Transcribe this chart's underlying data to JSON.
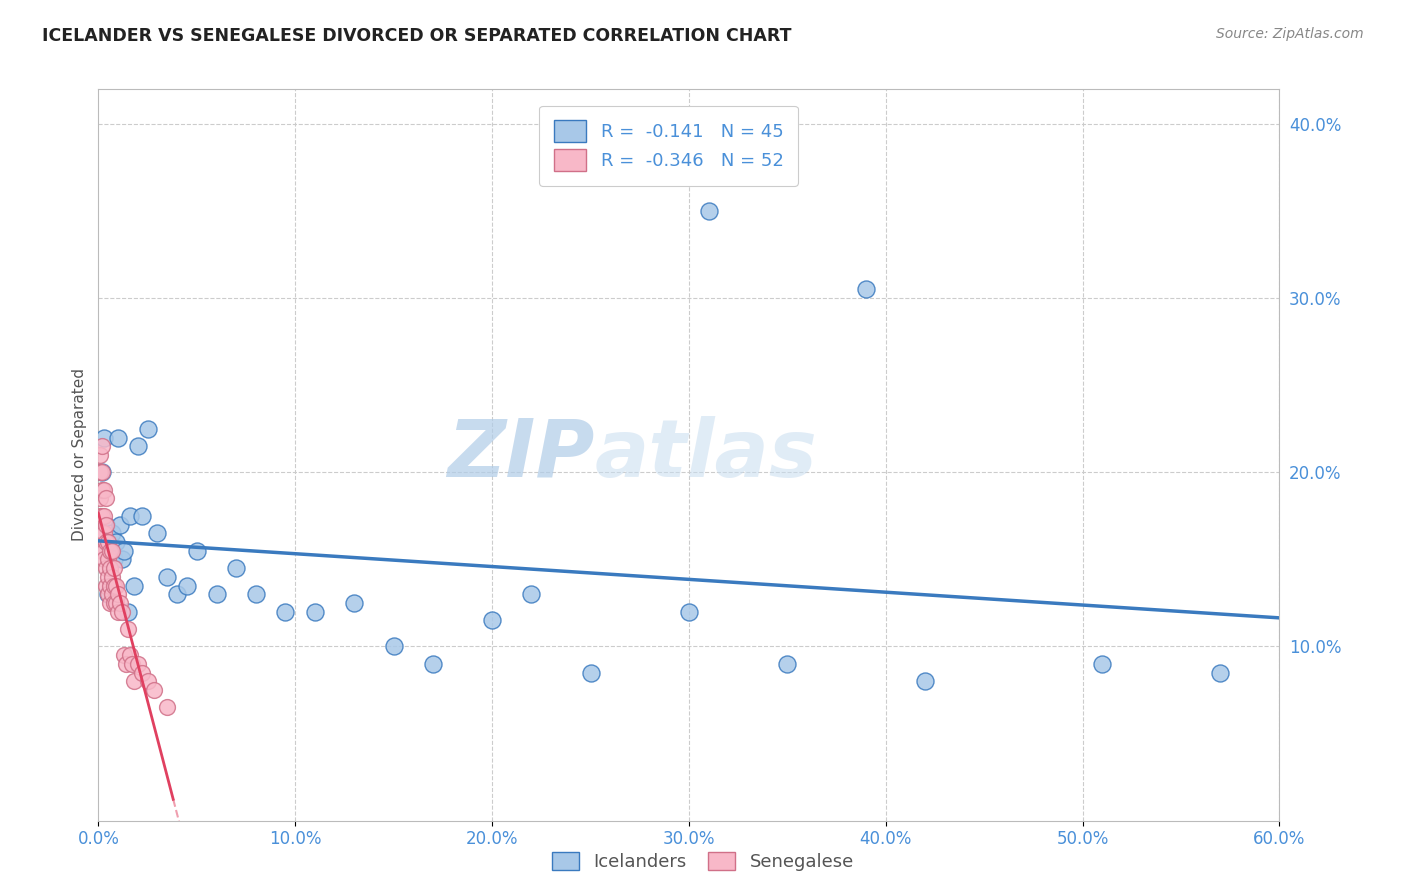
{
  "title": "ICELANDER VS SENEGALESE DIVORCED OR SEPARATED CORRELATION CHART",
  "source": "Source: ZipAtlas.com",
  "ylabel_label": "Divorced or Separated",
  "legend_label1": "Icelanders",
  "legend_label2": "Senegalese",
  "R1": -0.141,
  "N1": 45,
  "R2": -0.346,
  "N2": 52,
  "color1": "#a8c8e8",
  "color2": "#f8b8c8",
  "line_color1": "#3a7abf",
  "line_color2": "#e04060",
  "watermark_zip": "ZIP",
  "watermark_atlas": "atlas",
  "xlim": [
    0.0,
    0.6
  ],
  "ylim": [
    0.0,
    0.42
  ],
  "xticks": [
    0.0,
    0.1,
    0.2,
    0.3,
    0.4,
    0.5,
    0.6
  ],
  "yticks": [
    0.1,
    0.2,
    0.3,
    0.4
  ],
  "icelander_x": [
    0.001,
    0.002,
    0.002,
    0.003,
    0.003,
    0.004,
    0.004,
    0.005,
    0.006,
    0.007,
    0.008,
    0.009,
    0.01,
    0.011,
    0.012,
    0.013,
    0.015,
    0.016,
    0.018,
    0.02,
    0.022,
    0.025,
    0.03,
    0.035,
    0.04,
    0.045,
    0.05,
    0.06,
    0.07,
    0.08,
    0.095,
    0.11,
    0.13,
    0.15,
    0.17,
    0.2,
    0.22,
    0.25,
    0.3,
    0.31,
    0.35,
    0.39,
    0.42,
    0.51,
    0.57
  ],
  "icelander_y": [
    0.17,
    0.16,
    0.2,
    0.22,
    0.165,
    0.155,
    0.17,
    0.13,
    0.155,
    0.165,
    0.15,
    0.16,
    0.22,
    0.17,
    0.15,
    0.155,
    0.12,
    0.175,
    0.135,
    0.215,
    0.175,
    0.225,
    0.165,
    0.14,
    0.13,
    0.135,
    0.155,
    0.13,
    0.145,
    0.13,
    0.12,
    0.12,
    0.125,
    0.1,
    0.09,
    0.115,
    0.13,
    0.085,
    0.12,
    0.35,
    0.09,
    0.305,
    0.08,
    0.09,
    0.085
  ],
  "senegalese_x": [
    0.001,
    0.001,
    0.001,
    0.001,
    0.001,
    0.002,
    0.002,
    0.002,
    0.002,
    0.002,
    0.002,
    0.003,
    0.003,
    0.003,
    0.003,
    0.003,
    0.004,
    0.004,
    0.004,
    0.004,
    0.004,
    0.005,
    0.005,
    0.005,
    0.005,
    0.006,
    0.006,
    0.006,
    0.006,
    0.007,
    0.007,
    0.007,
    0.008,
    0.008,
    0.008,
    0.009,
    0.009,
    0.01,
    0.01,
    0.011,
    0.012,
    0.013,
    0.014,
    0.015,
    0.016,
    0.017,
    0.018,
    0.02,
    0.022,
    0.025,
    0.028,
    0.035
  ],
  "senegalese_y": [
    0.2,
    0.21,
    0.185,
    0.175,
    0.165,
    0.215,
    0.2,
    0.19,
    0.175,
    0.165,
    0.155,
    0.19,
    0.175,
    0.165,
    0.155,
    0.15,
    0.185,
    0.17,
    0.16,
    0.145,
    0.135,
    0.16,
    0.15,
    0.14,
    0.13,
    0.155,
    0.145,
    0.135,
    0.125,
    0.155,
    0.14,
    0.13,
    0.145,
    0.135,
    0.125,
    0.135,
    0.125,
    0.13,
    0.12,
    0.125,
    0.12,
    0.095,
    0.09,
    0.11,
    0.095,
    0.09,
    0.08,
    0.09,
    0.085,
    0.08,
    0.075,
    0.065
  ],
  "background_color": "#ffffff",
  "grid_color": "#cccccc"
}
